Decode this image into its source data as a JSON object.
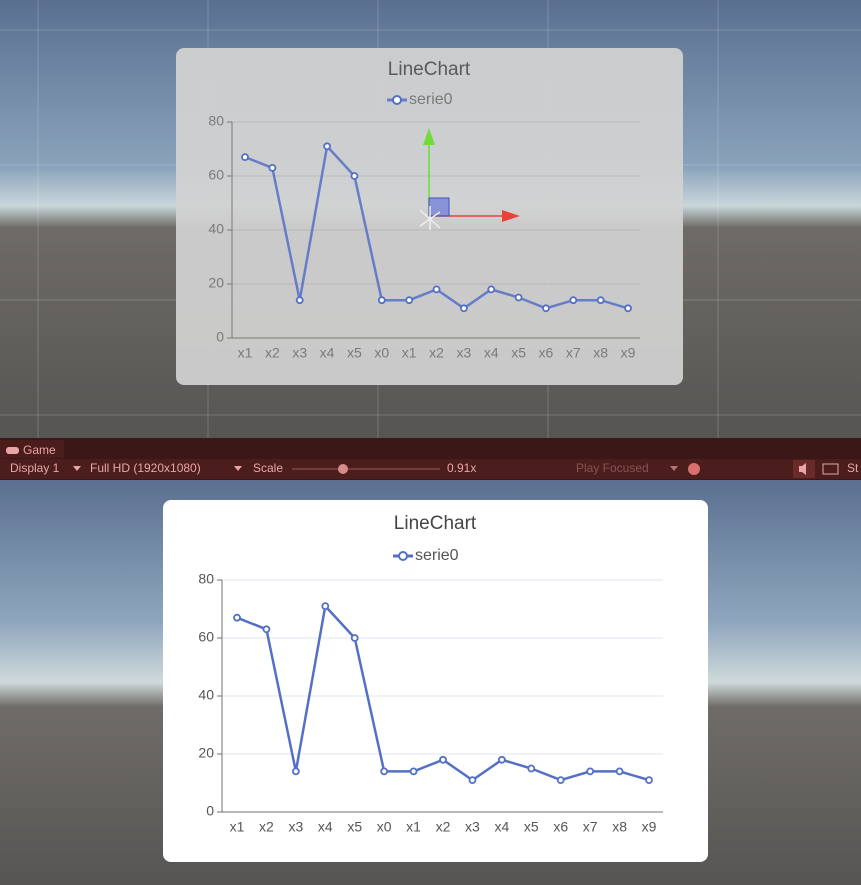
{
  "chart_data": [
    {
      "type": "line",
      "title": "LineChart",
      "categories": [
        "x1",
        "x2",
        "x3",
        "x4",
        "x5",
        "x0",
        "x1",
        "x2",
        "x3",
        "x4",
        "x5",
        "x6",
        "x7",
        "x8",
        "x9"
      ],
      "series": [
        {
          "name": "serie0",
          "color": "#5470c6",
          "values": [
            67,
            63,
            14,
            71,
            60,
            14,
            14,
            18,
            11,
            18,
            15,
            11,
            14,
            14,
            11
          ]
        }
      ],
      "ylim": [
        0,
        80
      ],
      "yticks": [
        0,
        20,
        40,
        60,
        80
      ],
      "grid": true
    },
    {
      "type": "line",
      "title": "LineChart",
      "categories": [
        "x1",
        "x2",
        "x3",
        "x4",
        "x5",
        "x0",
        "x1",
        "x2",
        "x3",
        "x4",
        "x5",
        "x6",
        "x7",
        "x8",
        "x9"
      ],
      "series": [
        {
          "name": "serie0",
          "color": "#5470c6",
          "values": [
            67,
            63,
            14,
            71,
            60,
            14,
            14,
            18,
            11,
            18,
            15,
            11,
            14,
            14,
            11
          ]
        }
      ],
      "ylim": [
        0,
        80
      ],
      "yticks": [
        0,
        20,
        40,
        60,
        80
      ],
      "grid": true
    }
  ],
  "toolbar": {
    "tab": "Game",
    "display": "Display 1",
    "resolution": "Full HD (1920x1080)",
    "scale_label": "Scale",
    "scale_value": "0.91x",
    "play_mode": "Play Focused",
    "stats": "St"
  }
}
